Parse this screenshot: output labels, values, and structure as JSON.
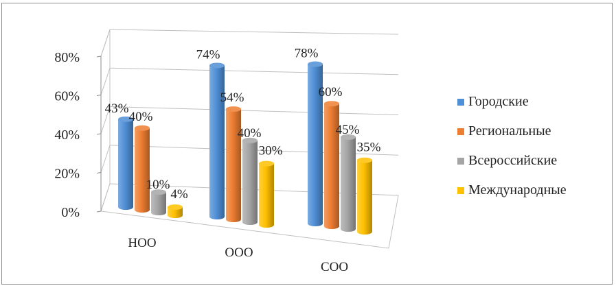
{
  "chart_data": {
    "type": "bar",
    "categories": [
      "НОО",
      "ООО",
      "СОО"
    ],
    "series": [
      {
        "name": "Городские",
        "color": "#4f8fd6",
        "values": [
          43,
          74,
          78
        ]
      },
      {
        "name": "Региональные",
        "color": "#ed7d31",
        "values": [
          40,
          54,
          60
        ]
      },
      {
        "name": "Всероссийские",
        "color": "#a5a5a5",
        "values": [
          10,
          40,
          45
        ]
      },
      {
        "name": "Международные",
        "color": "#ffc000",
        "values": [
          4,
          30,
          35
        ]
      }
    ],
    "data_labels": [
      [
        "43%",
        "74%",
        "78%"
      ],
      [
        "40%",
        "54%",
        "60%"
      ],
      [
        "10%",
        "40%",
        "45%"
      ],
      [
        "4%",
        "30%",
        "35%"
      ]
    ],
    "y_ticks": [
      "0%",
      "20%",
      "40%",
      "60%",
      "80%"
    ],
    "ylim": [
      0,
      80
    ],
    "grid": true,
    "legend_position": "right",
    "style": "3d-cylinder"
  }
}
